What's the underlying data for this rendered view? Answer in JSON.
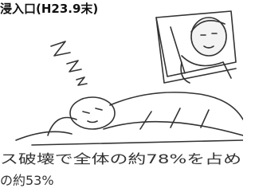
{
  "header": {
    "title": "浸入口(H23.9末)"
  },
  "caption": {
    "lines": [
      "ス破壊で全体の約78%を占め",
      "の約53%"
    ]
  }
}
